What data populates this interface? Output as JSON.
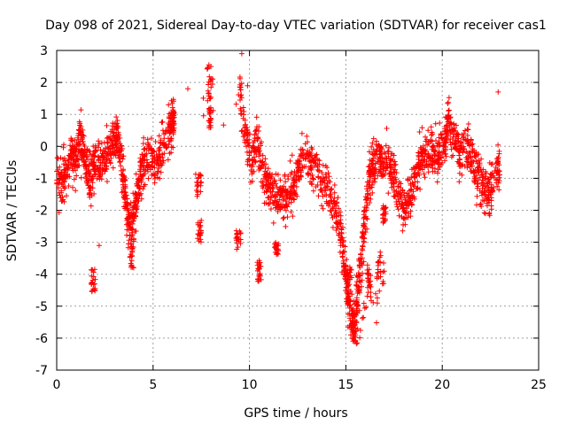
{
  "chart_data": {
    "type": "scatter",
    "title": "Day 098 of 2021, Sidereal Day-to-day VTEC variation (SDTVAR) for receiver cas1",
    "xlabel": "GPS time / hours",
    "ylabel": "SDTVAR / TECUs",
    "xlim": [
      0,
      25
    ],
    "ylim": [
      -7,
      3
    ],
    "xticks": [
      "0",
      "5",
      "10",
      "15",
      "20",
      "25"
    ],
    "yticks": [
      "-7",
      "-6",
      "-5",
      "-4",
      "-3",
      "-2",
      "-1",
      "0",
      "1",
      "2",
      "3"
    ],
    "grid": true,
    "marker": "+",
    "series_color": "#ff0000",
    "series": [
      {
        "name": "SDTVAR",
        "trend": [
          [
            0.0,
            -1.0
          ],
          [
            0.3,
            -1.3
          ],
          [
            0.5,
            -0.8
          ],
          [
            0.8,
            -0.2
          ],
          [
            1.0,
            -0.6
          ],
          [
            1.2,
            0.4
          ],
          [
            1.4,
            -0.3
          ],
          [
            1.6,
            -0.7
          ],
          [
            1.8,
            -1.0
          ],
          [
            2.0,
            -0.4
          ],
          [
            2.3,
            -0.6
          ],
          [
            2.6,
            -0.3
          ],
          [
            2.9,
            0.2
          ],
          [
            3.1,
            0.4
          ],
          [
            3.3,
            -0.2
          ],
          [
            3.5,
            -1.2
          ],
          [
            3.7,
            -2.2
          ],
          [
            3.9,
            -2.6
          ],
          [
            4.1,
            -1.8
          ],
          [
            4.3,
            -1.2
          ],
          [
            4.5,
            -0.5
          ],
          [
            4.8,
            -0.3
          ],
          [
            5.1,
            -0.7
          ],
          [
            5.4,
            -0.2
          ],
          [
            5.8,
            0.4
          ],
          [
            6.0,
            0.6
          ],
          [
            6.1,
            0.9
          ],
          [
            9.5,
            1.6
          ],
          [
            9.8,
            0.3
          ],
          [
            10.1,
            -0.5
          ],
          [
            10.4,
            0.2
          ],
          [
            10.7,
            -0.8
          ],
          [
            11.0,
            -1.2
          ],
          [
            11.3,
            -1.4
          ],
          [
            11.6,
            -1.7
          ],
          [
            11.9,
            -1.6
          ],
          [
            12.2,
            -1.4
          ],
          [
            12.5,
            -0.8
          ],
          [
            12.8,
            -0.3
          ],
          [
            13.2,
            -0.6
          ],
          [
            13.6,
            -0.9
          ],
          [
            14.0,
            -1.3
          ],
          [
            14.4,
            -1.9
          ],
          [
            14.7,
            -2.6
          ],
          [
            14.9,
            -3.5
          ],
          [
            15.1,
            -4.5
          ],
          [
            15.3,
            -5.6
          ],
          [
            15.5,
            -5.3
          ],
          [
            15.7,
            -4.2
          ],
          [
            15.9,
            -2.8
          ],
          [
            16.1,
            -1.6
          ],
          [
            16.3,
            -0.8
          ],
          [
            16.5,
            -0.5
          ],
          [
            16.8,
            -0.4
          ],
          [
            17.1,
            -0.5
          ],
          [
            17.4,
            -0.7
          ],
          [
            17.7,
            -1.4
          ],
          [
            18.0,
            -1.9
          ],
          [
            18.3,
            -1.6
          ],
          [
            18.6,
            -1.0
          ],
          [
            18.9,
            -0.5
          ],
          [
            19.2,
            -0.3
          ],
          [
            19.5,
            -0.1
          ],
          [
            19.8,
            -0.2
          ],
          [
            20.1,
            -0.1
          ],
          [
            20.3,
            0.6
          ],
          [
            20.6,
            0.3
          ],
          [
            20.9,
            -0.2
          ],
          [
            21.2,
            0.0
          ],
          [
            21.5,
            -0.3
          ],
          [
            21.8,
            -0.8
          ],
          [
            22.1,
            -1.2
          ],
          [
            22.4,
            -1.5
          ],
          [
            22.7,
            -1.0
          ],
          [
            23.0,
            -0.6
          ]
        ],
        "clusters": [
          [
            1.8,
            2.0,
            -4.2,
            0.4
          ],
          [
            3.8,
            4.0,
            -3.3,
            0.5
          ],
          [
            7.2,
            7.5,
            -1.2,
            0.4
          ],
          [
            7.3,
            7.5,
            -2.6,
            0.4
          ],
          [
            7.8,
            8.1,
            2.0,
            0.6
          ],
          [
            7.9,
            8.0,
            0.9,
            0.4
          ],
          [
            9.3,
            9.6,
            -3.0,
            0.4
          ],
          [
            10.4,
            10.6,
            -3.9,
            0.4
          ],
          [
            11.3,
            11.5,
            -3.2,
            0.2
          ],
          [
            14.9,
            15.3,
            -4.0,
            0.3
          ],
          [
            15.3,
            16.8,
            -5.0,
            0.7
          ],
          [
            15.3,
            15.8,
            -5.9,
            0.3
          ],
          [
            16.1,
            16.3,
            -4.2,
            0.5
          ],
          [
            16.6,
            17.0,
            -3.8,
            0.5
          ],
          [
            16.9,
            17.1,
            -2.1,
            0.3
          ]
        ],
        "singles": [
          [
            2.2,
            -3.1
          ],
          [
            6.8,
            1.8
          ],
          [
            9.6,
            2.9
          ],
          [
            22.9,
            1.7
          ],
          [
            5.8,
            1.3
          ],
          [
            6.1,
            0.9
          ],
          [
            9.9,
            1.9
          ],
          [
            8.0,
            2.5
          ]
        ]
      }
    ]
  }
}
